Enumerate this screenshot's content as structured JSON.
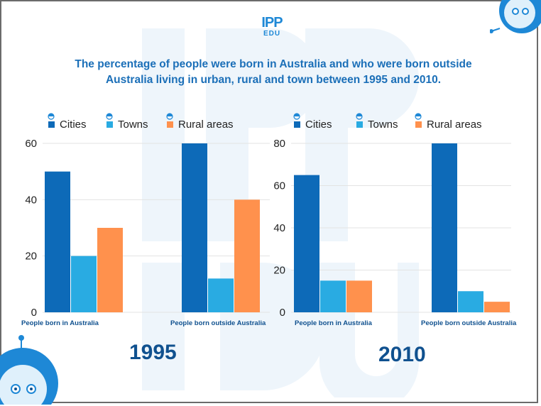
{
  "title": "The percentage of people were born in Australia and who were born outside Australia living in urban, rural and town between 1995 and 2010.",
  "logo": {
    "top": "IPP",
    "bottom": "EDU"
  },
  "colors": {
    "cities": "#0d6ab8",
    "towns": "#29abe2",
    "rural": "#ff914d",
    "grid": "#e3e3e3",
    "title": "#1b6fb8"
  },
  "chart_data": [
    {
      "type": "bar",
      "year_label": "1995",
      "categories": [
        "People born in Australia",
        "People born outside Australia"
      ],
      "series": [
        {
          "name": "Cities",
          "values": [
            50,
            60
          ]
        },
        {
          "name": "Towns",
          "values": [
            20,
            12
          ]
        },
        {
          "name": "Rural areas",
          "values": [
            30,
            40
          ]
        }
      ],
      "yticks": [
        0,
        20,
        40,
        60
      ],
      "ylim": [
        0,
        60
      ],
      "legend": "top"
    },
    {
      "type": "bar",
      "year_label": "2010",
      "categories": [
        "People born in Australia",
        "People born outside Australia"
      ],
      "series": [
        {
          "name": "Cities",
          "values": [
            65,
            80
          ]
        },
        {
          "name": "Towns",
          "values": [
            15,
            10
          ]
        },
        {
          "name": "Rural areas",
          "values": [
            15,
            5
          ]
        }
      ],
      "yticks": [
        0,
        20,
        40,
        60,
        80
      ],
      "ylim": [
        0,
        80
      ],
      "legend": "top"
    }
  ]
}
